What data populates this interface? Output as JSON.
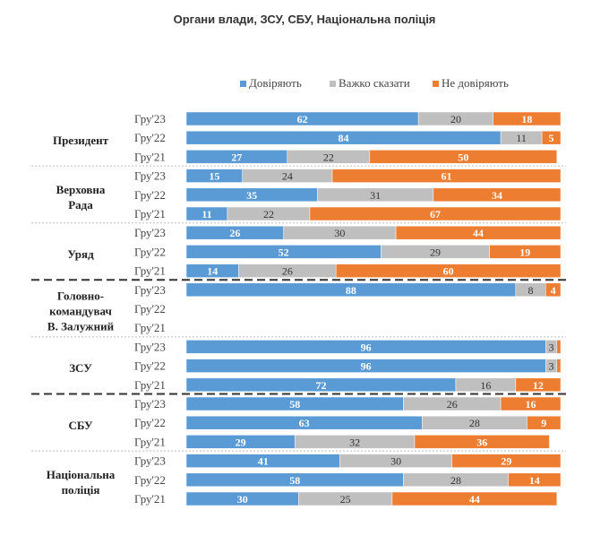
{
  "chart_data": {
    "type": "bar",
    "stacked": true,
    "orientation": "horizontal",
    "title": "Органи влади, ЗСУ, СБУ, Національна поліція",
    "legend_position": "top-right",
    "series": [
      {
        "name": "Довіряють",
        "color": "#5b9bd5"
      },
      {
        "name": "Важко сказати",
        "color": "#bfbfbf"
      },
      {
        "name": "Не довіряють",
        "color": "#ed7d31"
      }
    ],
    "xlim": [
      0,
      100
    ],
    "groups": [
      {
        "name": "Президент",
        "rows": [
          {
            "label": "Гру'23",
            "values": [
              62,
              20,
              18
            ]
          },
          {
            "label": "Гру'22",
            "values": [
              84,
              11,
              5
            ]
          },
          {
            "label": "Гру'21",
            "values": [
              27,
              22,
              50
            ]
          }
        ]
      },
      {
        "name": "Верховна Рада",
        "rows": [
          {
            "label": "Гру'23",
            "values": [
              15,
              24,
              61
            ]
          },
          {
            "label": "Гру'22",
            "values": [
              35,
              31,
              34
            ]
          },
          {
            "label": "Гру'21",
            "values": [
              11,
              22,
              67
            ]
          }
        ]
      },
      {
        "name": "Уряд",
        "rows": [
          {
            "label": "Гру'23",
            "values": [
              26,
              30,
              44
            ]
          },
          {
            "label": "Гру'22",
            "values": [
              52,
              29,
              19
            ]
          },
          {
            "label": "Гру'21",
            "values": [
              14,
              26,
              60
            ]
          }
        ]
      },
      {
        "name": "Головно- командувач В. Залужний",
        "rows": [
          {
            "label": "Гру'23",
            "values": [
              88,
              8,
              4
            ]
          },
          {
            "label": "Гру'22",
            "values": null
          },
          {
            "label": "Гру'21",
            "values": null
          }
        ]
      },
      {
        "name": "ЗСУ",
        "rows": [
          {
            "label": "Гру'23",
            "values": [
              96,
              3,
              1
            ]
          },
          {
            "label": "Гру'22",
            "values": [
              96,
              3,
              1
            ]
          },
          {
            "label": "Гру'21",
            "values": [
              72,
              16,
              12
            ]
          }
        ]
      },
      {
        "name": "СБУ",
        "rows": [
          {
            "label": "Гру'23",
            "values": [
              58,
              26,
              16
            ]
          },
          {
            "label": "Гру'22",
            "values": [
              63,
              28,
              9
            ]
          },
          {
            "label": "Гру'21",
            "values": [
              29,
              32,
              36
            ]
          }
        ]
      },
      {
        "name": "Національна поліція",
        "rows": [
          {
            "label": "Гру'23",
            "values": [
              41,
              30,
              29
            ]
          },
          {
            "label": "Гру'22",
            "values": [
              58,
              28,
              14
            ]
          },
          {
            "label": "Гру'21",
            "values": [
              30,
              25,
              44
            ]
          }
        ]
      }
    ],
    "separators": [
      "dotted",
      "dotted",
      "dashed",
      "dotted",
      "dashed",
      "dotted"
    ]
  }
}
